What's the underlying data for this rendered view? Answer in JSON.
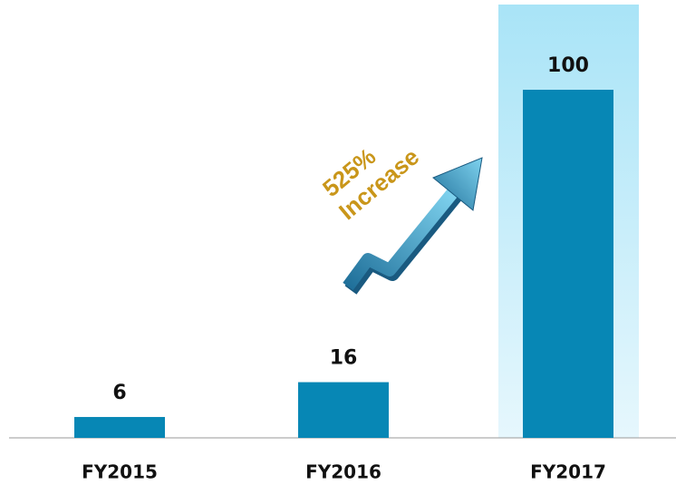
{
  "chart_data": {
    "type": "bar",
    "categories": [
      "FY2015",
      "FY2016",
      "FY2017"
    ],
    "values": [
      6,
      16,
      100
    ],
    "color": "#0787b5",
    "ylim": [
      0,
      100
    ],
    "annotation": [
      "525%",
      "Increase"
    ]
  }
}
